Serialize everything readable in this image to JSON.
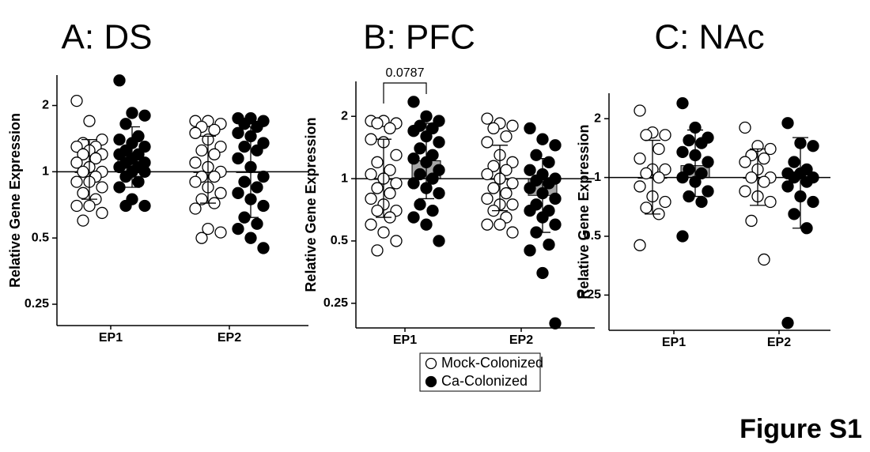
{
  "figure_label": "Figure S1",
  "chart_data": [
    {
      "type": "strip",
      "title": "A: DS",
      "y_label": "Relative Gene Expression",
      "categories": [
        "EP1",
        "EP2"
      ],
      "log_scale": true,
      "ylim": [
        0.2,
        2.75
      ],
      "yticks": [
        0.25,
        0.5,
        1,
        2
      ],
      "reference": 1,
      "bar_color": "#a6a6a6",
      "legend": false,
      "series": [
        {
          "name": "Mock-Colonized",
          "color": "#ffffff",
          "values": [
            [
              2.1,
              1.7,
              1.4,
              1.35,
              1.3,
              1.3,
              1.25,
              1.2,
              1.2,
              1.15,
              1.1,
              1.05,
              1.0,
              1.0,
              0.95,
              0.9,
              0.9,
              0.85,
              0.8,
              0.75,
              0.7,
              0.7,
              0.65,
              0.6
            ],
            [
              1.7,
              1.7,
              1.65,
              1.6,
              1.55,
              1.5,
              1.4,
              1.3,
              1.25,
              1.2,
              1.1,
              1.05,
              1.0,
              0.95,
              0.95,
              0.9,
              0.85,
              0.8,
              0.75,
              0.72,
              0.68,
              0.55,
              0.53,
              0.5
            ]
          ],
          "means": [
            1.0,
            1.0
          ],
          "errors": [
            [
              0.75,
              1.4
            ],
            [
              0.72,
              1.45
            ]
          ]
        },
        {
          "name": "Ca-Colonized",
          "color": "#000000",
          "values": [
            [
              2.6,
              1.85,
              1.8,
              1.65,
              1.45,
              1.4,
              1.35,
              1.3,
              1.25,
              1.2,
              1.2,
              1.15,
              1.1,
              1.1,
              1.05,
              1.05,
              1.0,
              1.0,
              0.95,
              0.9,
              0.85,
              0.75,
              0.7,
              0.7
            ],
            [
              1.75,
              1.75,
              1.7,
              1.65,
              1.6,
              1.5,
              1.45,
              1.35,
              1.3,
              1.25,
              1.15,
              1.05,
              0.95,
              0.9,
              0.85,
              0.8,
              0.75,
              0.7,
              0.62,
              0.58,
              0.55,
              0.5,
              0.45
            ]
          ],
          "means": [
            1.15,
            1.0
          ],
          "errors": [
            [
              0.85,
              1.6
            ],
            [
              0.62,
              1.6
            ]
          ]
        }
      ]
    },
    {
      "type": "strip",
      "title": "B: PFC",
      "y_label": "Relative Gene Expression",
      "categories": [
        "EP1",
        "EP2"
      ],
      "log_scale": true,
      "ylim": [
        0.19,
        2.95
      ],
      "yticks": [
        0.25,
        0.5,
        1,
        2
      ],
      "reference": 1,
      "bar_color": "#a6a6a6",
      "legend": true,
      "annotations": [
        {
          "text": "0.0787",
          "category": 0
        }
      ],
      "series": [
        {
          "name": "Mock-Colonized",
          "color": "#ffffff",
          "values": [
            [
              1.9,
              1.9,
              1.85,
              1.85,
              1.75,
              1.55,
              1.5,
              1.3,
              1.2,
              1.1,
              1.05,
              1.0,
              0.95,
              0.9,
              0.85,
              0.8,
              0.75,
              0.7,
              0.7,
              0.65,
              0.6,
              0.55,
              0.5,
              0.45
            ],
            [
              1.95,
              1.85,
              1.8,
              1.75,
              1.6,
              1.5,
              1.3,
              1.2,
              1.15,
              1.1,
              1.05,
              1.0,
              0.95,
              0.9,
              0.85,
              0.8,
              0.75,
              0.75,
              0.7,
              0.65,
              0.6,
              0.6,
              0.55
            ]
          ],
          "means": [
            1.0,
            1.0
          ],
          "errors": [
            [
              0.65,
              1.55
            ],
            [
              0.7,
              1.45
            ]
          ]
        },
        {
          "name": "Ca-Colonized",
          "color": "#000000",
          "values": [
            [
              2.35,
              2.0,
              1.9,
              1.8,
              1.75,
              1.7,
              1.6,
              1.5,
              1.4,
              1.3,
              1.25,
              1.2,
              1.1,
              1.05,
              1.0,
              0.95,
              0.9,
              0.85,
              0.75,
              0.7,
              0.65,
              0.6,
              0.5
            ],
            [
              1.75,
              1.55,
              1.45,
              1.3,
              1.2,
              1.1,
              1.05,
              1.0,
              0.98,
              0.95,
              0.9,
              0.85,
              0.8,
              0.75,
              0.7,
              0.7,
              0.65,
              0.6,
              0.55,
              0.48,
              0.45,
              0.35,
              0.2
            ]
          ],
          "means": [
            1.22,
            0.83
          ],
          "errors": [
            [
              0.8,
              1.85
            ],
            [
              0.55,
              1.25
            ]
          ]
        }
      ]
    },
    {
      "type": "strip",
      "title": "C: NAc",
      "y_label": "Relative Gene Expression",
      "categories": [
        "EP1",
        "EP2"
      ],
      "log_scale": true,
      "ylim": [
        0.165,
        2.7
      ],
      "yticks": [
        0.25,
        0.5,
        1,
        2
      ],
      "reference": 1,
      "bar_color": "#a6a6a6",
      "legend": false,
      "series": [
        {
          "name": "Mock-Colonized",
          "color": "#ffffff",
          "values": [
            [
              2.2,
              1.7,
              1.65,
              1.65,
              1.4,
              1.25,
              1.1,
              1.1,
              1.05,
              1.0,
              0.9,
              0.8,
              0.75,
              0.7,
              0.65,
              0.45
            ],
            [
              1.8,
              1.45,
              1.4,
              1.3,
              1.25,
              1.2,
              1.1,
              1.0,
              1.0,
              0.95,
              0.85,
              0.8,
              0.75,
              0.6,
              0.38
            ]
          ],
          "means": [
            1.0,
            1.0
          ],
          "errors": [
            [
              0.65,
              1.55
            ],
            [
              0.72,
              1.4
            ]
          ]
        },
        {
          "name": "Ca-Colonized",
          "color": "#000000",
          "values": [
            [
              2.4,
              1.8,
              1.6,
              1.55,
              1.5,
              1.35,
              1.3,
              1.2,
              1.1,
              1.05,
              1.0,
              0.95,
              0.85,
              0.8,
              0.75,
              0.5
            ],
            [
              1.9,
              1.5,
              1.45,
              1.2,
              1.1,
              1.05,
              1.05,
              1.0,
              1.0,
              0.95,
              0.9,
              0.8,
              0.75,
              0.65,
              0.55,
              0.18
            ]
          ],
          "means": [
            1.15,
            1.0
          ],
          "errors": [
            [
              0.8,
              1.75
            ],
            [
              0.55,
              1.6
            ]
          ]
        }
      ]
    }
  ]
}
